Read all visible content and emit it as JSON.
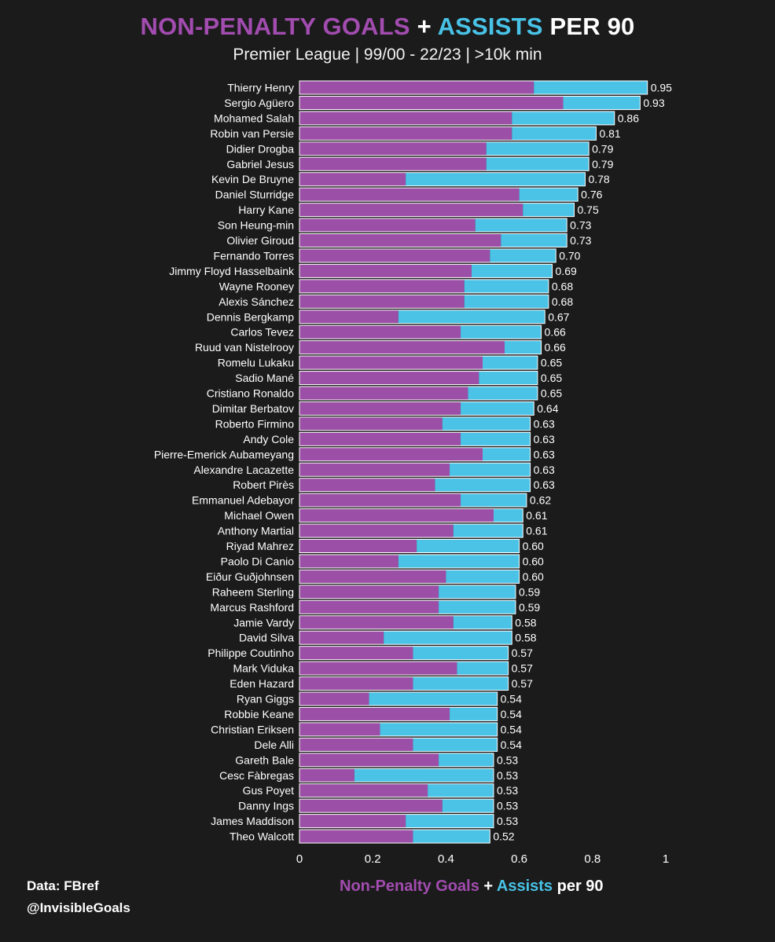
{
  "title": {
    "part1": "NON-PENALTY GOALS",
    "plus": "+",
    "part2": "ASSISTS",
    "part3": "PER 90"
  },
  "subtitle": "Premier League | 99/00 - 22/23 | >10k min",
  "credits": {
    "source": "Data: FBref",
    "handle": "@InvisibleGoals"
  },
  "xlabel": {
    "part1": "Non-Penalty Goals",
    "plus": "+",
    "part2": "Assists",
    "part3": "per 90"
  },
  "colors": {
    "npg": "#9c4fa6",
    "assists": "#4bc3e6",
    "background": "#1b1b1b",
    "text": "#ffffff"
  },
  "chart_data": {
    "type": "bar",
    "orientation": "horizontal",
    "stacked": true,
    "xlim": [
      0,
      1
    ],
    "xticks": [
      0,
      0.2,
      0.4,
      0.6,
      0.8,
      1
    ],
    "xtick_labels": [
      "0",
      "0.2",
      "0.4",
      "0.6",
      "0.8",
      "1"
    ],
    "categories": [
      "Thierry Henry",
      "Sergio Agüero",
      "Mohamed Salah",
      "Robin van Persie",
      "Didier Drogba",
      "Gabriel Jesus",
      "Kevin De Bruyne",
      "Daniel Sturridge",
      "Harry Kane",
      "Son Heung-min",
      "Olivier Giroud",
      "Fernando Torres",
      "Jimmy Floyd Hasselbaink",
      "Wayne Rooney",
      "Alexis Sánchez",
      "Dennis Bergkamp",
      "Carlos Tevez",
      "Ruud van Nistelrooy",
      "Romelu Lukaku",
      "Sadio Mané",
      "Cristiano Ronaldo",
      "Dimitar Berbatov",
      "Roberto Firmino",
      "Andy Cole",
      "Pierre-Emerick Aubameyang",
      "Alexandre Lacazette",
      "Robert Pirès",
      "Emmanuel Adebayor",
      "Michael Owen",
      "Anthony Martial",
      "Riyad Mahrez",
      "Paolo Di Canio",
      "Eiður Guðjohnsen",
      "Raheem Sterling",
      "Marcus Rashford",
      "Jamie Vardy",
      "David Silva",
      "Philippe Coutinho",
      "Mark Viduka",
      "Eden Hazard",
      "Ryan Giggs",
      "Robbie Keane",
      "Christian Eriksen",
      "Dele Alli",
      "Gareth Bale",
      "Cesc Fàbregas",
      "Gus Poyet",
      "Danny Ings",
      "James Maddison",
      "Theo Walcott"
    ],
    "series": [
      {
        "name": "Non-Penalty Goals",
        "values": [
          0.64,
          0.72,
          0.58,
          0.58,
          0.51,
          0.51,
          0.29,
          0.6,
          0.61,
          0.48,
          0.55,
          0.52,
          0.47,
          0.45,
          0.45,
          0.27,
          0.44,
          0.56,
          0.5,
          0.49,
          0.46,
          0.44,
          0.39,
          0.44,
          0.5,
          0.41,
          0.37,
          0.44,
          0.53,
          0.42,
          0.32,
          0.27,
          0.4,
          0.38,
          0.38,
          0.42,
          0.23,
          0.31,
          0.43,
          0.31,
          0.19,
          0.41,
          0.22,
          0.31,
          0.38,
          0.15,
          0.35,
          0.39,
          0.29,
          0.31
        ]
      },
      {
        "name": "Assists",
        "values": [
          0.31,
          0.21,
          0.28,
          0.23,
          0.28,
          0.28,
          0.49,
          0.16,
          0.14,
          0.25,
          0.18,
          0.18,
          0.22,
          0.23,
          0.23,
          0.4,
          0.22,
          0.1,
          0.15,
          0.16,
          0.19,
          0.2,
          0.24,
          0.19,
          0.13,
          0.22,
          0.26,
          0.18,
          0.08,
          0.19,
          0.28,
          0.33,
          0.2,
          0.21,
          0.21,
          0.16,
          0.35,
          0.26,
          0.14,
          0.26,
          0.35,
          0.13,
          0.32,
          0.23,
          0.15,
          0.38,
          0.18,
          0.14,
          0.24,
          0.21
        ]
      }
    ],
    "totals": [
      "0.95",
      "0.93",
      "0.86",
      "0.81",
      "0.79",
      "0.79",
      "0.78",
      "0.76",
      "0.75",
      "0.73",
      "0.73",
      "0.70",
      "0.69",
      "0.68",
      "0.68",
      "0.67",
      "0.66",
      "0.66",
      "0.65",
      "0.65",
      "0.65",
      "0.64",
      "0.63",
      "0.63",
      "0.63",
      "0.63",
      "0.63",
      "0.62",
      "0.61",
      "0.61",
      "0.60",
      "0.60",
      "0.60",
      "0.59",
      "0.59",
      "0.58",
      "0.58",
      "0.57",
      "0.57",
      "0.57",
      "0.54",
      "0.54",
      "0.54",
      "0.54",
      "0.53",
      "0.53",
      "0.53",
      "0.53",
      "0.53",
      "0.52"
    ]
  }
}
